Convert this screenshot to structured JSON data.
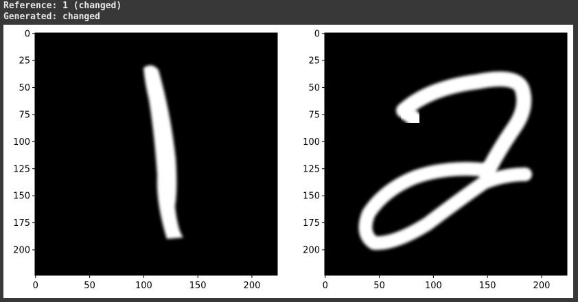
{
  "console": {
    "reference_line": "Reference: 1 (changed)",
    "generated_line": "Generated: changed"
  },
  "chart_data": [
    {
      "type": "heatmap",
      "title": "",
      "xlabel": "",
      "ylabel": "",
      "xlim": [
        0,
        224
      ],
      "ylim": [
        224,
        0
      ],
      "x_ticks": [
        0,
        50,
        100,
        150,
        200
      ],
      "y_ticks": [
        0,
        25,
        50,
        75,
        100,
        125,
        150,
        175,
        200
      ],
      "colormap": "gray",
      "background": "#000000",
      "content": "handwritten digit 1"
    },
    {
      "type": "heatmap",
      "title": "",
      "xlabel": "",
      "ylabel": "",
      "xlim": [
        0,
        224
      ],
      "ylim": [
        224,
        0
      ],
      "x_ticks": [
        0,
        50,
        100,
        150,
        200
      ],
      "y_ticks": [
        0,
        25,
        50,
        75,
        100,
        125,
        150,
        175,
        200
      ],
      "colormap": "gray",
      "background": "#000000",
      "content": "handwritten digit 2"
    }
  ]
}
